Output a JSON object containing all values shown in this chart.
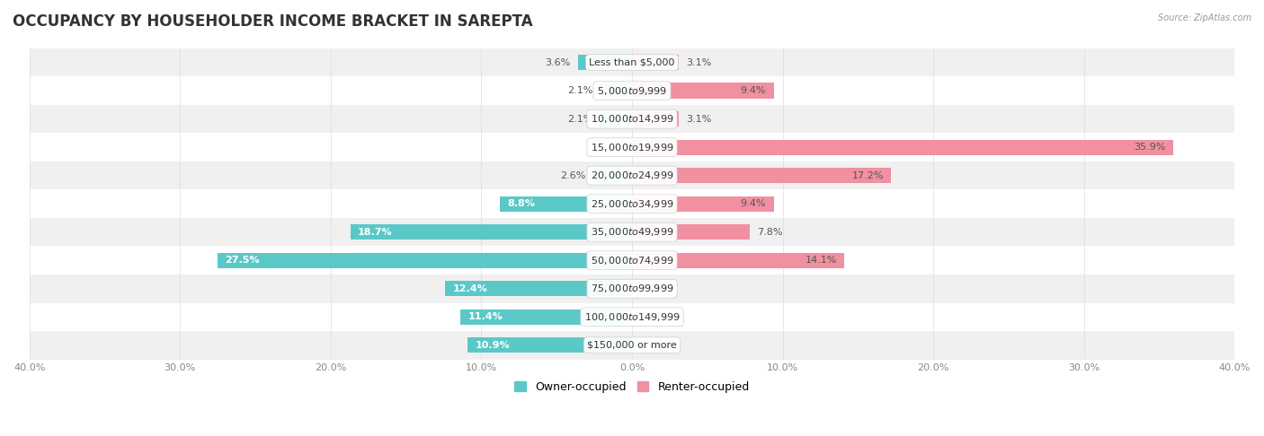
{
  "title": "OCCUPANCY BY HOUSEHOLDER INCOME BRACKET IN SAREPTA",
  "source": "Source: ZipAtlas.com",
  "categories": [
    "Less than $5,000",
    "$5,000 to $9,999",
    "$10,000 to $14,999",
    "$15,000 to $19,999",
    "$20,000 to $24,999",
    "$25,000 to $34,999",
    "$35,000 to $49,999",
    "$50,000 to $74,999",
    "$75,000 to $99,999",
    "$100,000 to $149,999",
    "$150,000 or more"
  ],
  "owner_values": [
    3.6,
    2.1,
    2.1,
    0.0,
    2.6,
    8.8,
    18.7,
    27.5,
    12.4,
    11.4,
    10.9
  ],
  "renter_values": [
    3.1,
    9.4,
    3.1,
    35.9,
    17.2,
    9.4,
    7.8,
    14.1,
    0.0,
    0.0,
    0.0
  ],
  "owner_color": "#5bc8c8",
  "renter_color": "#f090a0",
  "owner_label": "Owner-occupied",
  "renter_label": "Renter-occupied",
  "xlim": 40.0,
  "bar_height": 0.55,
  "row_bg_colors": [
    "#f0f0f0",
    "#ffffff"
  ],
  "title_fontsize": 12,
  "label_fontsize": 8,
  "category_fontsize": 8,
  "axis_label_fontsize": 8,
  "value_label_color": "#555555",
  "value_label_inside_color": "white"
}
